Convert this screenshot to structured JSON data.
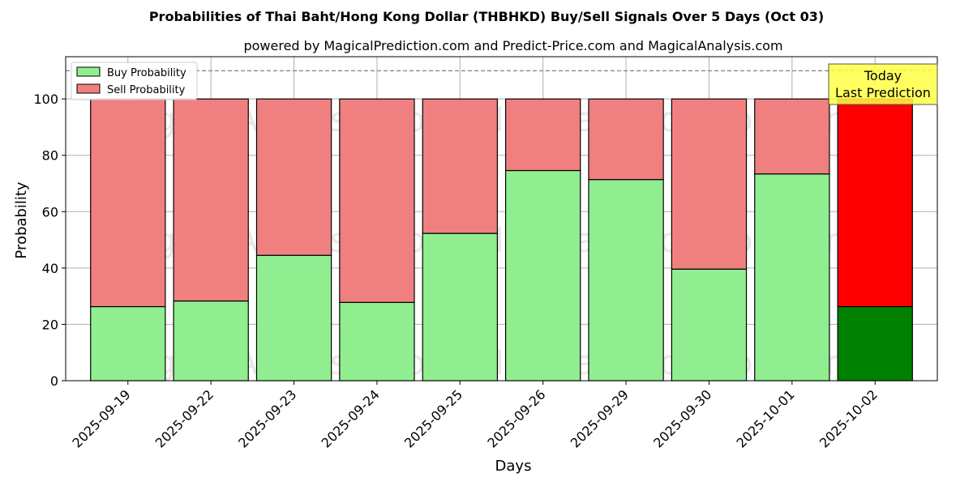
{
  "chart_data": {
    "type": "bar",
    "stacked": true,
    "title": "Probabilities of Thai Baht/Hong Kong Dollar (THBHKD) Buy/Sell Signals Over 5 Days (Oct 03)",
    "subtitle": "powered by MagicalPrediction.com and Predict-Price.com and MagicalAnalysis.com",
    "xlabel": "Days",
    "ylabel": "Probability",
    "ylim": [
      0,
      115
    ],
    "yticks": [
      0,
      20,
      40,
      60,
      80,
      100
    ],
    "reference_line": 110,
    "grid": true,
    "legend_position": "top-left",
    "categories": [
      "2025-09-19",
      "2025-09-22",
      "2025-09-23",
      "2025-09-24",
      "2025-09-25",
      "2025-09-26",
      "2025-09-29",
      "2025-09-30",
      "2025-10-01",
      "2025-10-02"
    ],
    "series": [
      {
        "name": "Buy Probability",
        "values": [
          26.3,
          28.3,
          44.5,
          27.8,
          52.3,
          74.6,
          71.4,
          39.6,
          73.4,
          26.3
        ]
      },
      {
        "name": "Sell Probability",
        "values": [
          73.7,
          71.7,
          55.5,
          72.2,
          47.7,
          25.4,
          28.6,
          60.4,
          26.6,
          73.7
        ]
      }
    ],
    "annotation": {
      "lines": [
        "Today",
        "Last Prediction"
      ],
      "category": "2025-10-02"
    },
    "watermarks": [
      "MagicalAnalysis.com",
      "MagicalPrediction.com"
    ]
  },
  "colors": {
    "buy": "#90ee90",
    "sell": "#f08080",
    "buy_highlight": "#008000",
    "sell_highlight": "#ff0000",
    "annotation_bg": "#ffff44",
    "grid": "#b0b0b0"
  }
}
